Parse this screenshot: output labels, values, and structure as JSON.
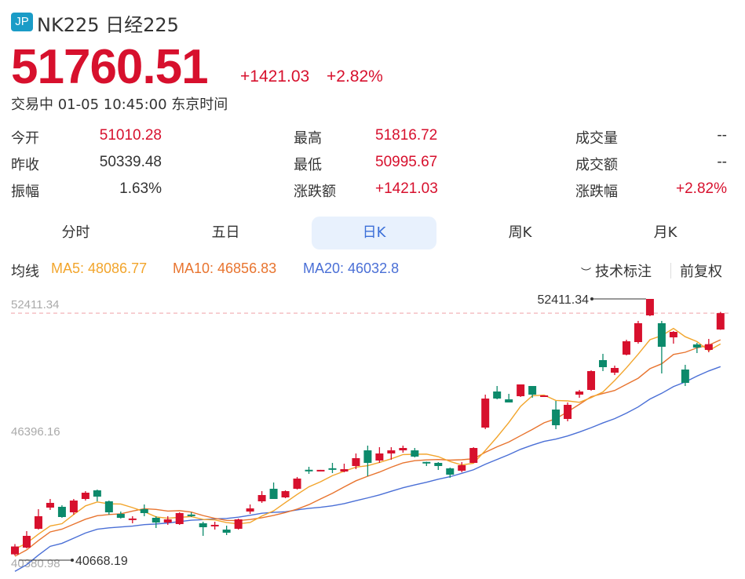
{
  "header": {
    "badge": "JP",
    "title": "NK225 日经225",
    "price": "51760.51",
    "change": "+1421.03",
    "change_pct": "+2.82%",
    "status_time": "交易中 01-05 10:45:00 东京时间"
  },
  "stats": [
    {
      "label": "今开",
      "value": "51010.28",
      "color": "red"
    },
    {
      "label": "昨收",
      "value": "50339.48",
      "color": "dark"
    },
    {
      "label": "振幅",
      "value": "1.63%",
      "color": "dark"
    },
    {
      "label": "最高",
      "value": "51816.72",
      "color": "red"
    },
    {
      "label": "最低",
      "value": "50995.67",
      "color": "red"
    },
    {
      "label": "涨跌额",
      "value": "+1421.03",
      "color": "red"
    },
    {
      "label": "成交量",
      "value": "--",
      "color": "dark"
    },
    {
      "label": "成交额",
      "value": "--",
      "color": "dark"
    },
    {
      "label": "涨跌幅",
      "value": "+2.82%",
      "color": "red"
    }
  ],
  "tabs": [
    {
      "label": "分时"
    },
    {
      "label": "五日"
    },
    {
      "label": "日K",
      "active": true
    },
    {
      "label": "周K"
    },
    {
      "label": "月K"
    }
  ],
  "ma_legend": {
    "label": "均线",
    "ma5": "MA5: 48086.77",
    "ma10": "MA10: 46856.83",
    "ma20": "MA20: 46032.8",
    "tech": "技术标注",
    "adjust": "前复权",
    "tech_icon": "eye-closed-icon"
  },
  "colors": {
    "up": "#d7102d",
    "down": "#0c8a6b",
    "ma5": "#f2a52c",
    "ma10": "#e8742f",
    "ma20": "#4a6fd6",
    "active_tab": "#3b6fd8"
  },
  "chart_data": {
    "type": "candlestick",
    "ylim": [
      40380.98,
      52411.34
    ],
    "y_ticks": [
      "52411.34",
      "46396.16",
      "40380.98"
    ],
    "current_price_line": 51760.51,
    "max_label": "52411.34",
    "min_label": "40668.19",
    "ohlc": [
      [
        40720,
        41080,
        41190,
        40668.19
      ],
      [
        41028,
        41566,
        41782,
        40992
      ],
      [
        41889,
        42464,
        42787,
        41853
      ],
      [
        42859,
        43075,
        43254,
        42751
      ],
      [
        42895,
        42428,
        42967,
        42392
      ],
      [
        42643,
        43182,
        43254,
        42536
      ],
      [
        43254,
        43541,
        43613,
        43182
      ],
      [
        43649,
        43362,
        43685,
        43146
      ],
      [
        43146,
        42643,
        43182,
        42536
      ],
      [
        42572,
        42392,
        42679,
        42356
      ],
      [
        42320,
        42360,
        42464,
        42141
      ],
      [
        42787,
        42608,
        43003,
        42464
      ],
      [
        42392,
        42177,
        42464,
        41925
      ],
      [
        42177,
        42320,
        42464,
        42069
      ],
      [
        42105,
        42608,
        42643,
        42069
      ],
      [
        42540,
        42520,
        42643,
        42428
      ],
      [
        42141,
        41961,
        42213,
        41566
      ],
      [
        42050,
        42070,
        42213,
        41853
      ],
      [
        41853,
        41710,
        42033,
        41602
      ],
      [
        41889,
        42320,
        42356,
        41853
      ],
      [
        42679,
        42823,
        43003,
        42572
      ],
      [
        43146,
        43434,
        43613,
        43074
      ],
      [
        43721,
        43254,
        44008,
        43254
      ],
      [
        43326,
        43613,
        43649,
        43290
      ],
      [
        43721,
        44188,
        44260,
        43685
      ],
      [
        44590,
        44575,
        44726,
        44403
      ],
      [
        44580,
        44586,
        44586,
        44580
      ],
      [
        44660,
        44650,
        44906,
        44439
      ],
      [
        44511,
        44619,
        44870,
        44475
      ],
      [
        44762,
        45122,
        45337,
        44619
      ],
      [
        45480,
        44906,
        45696,
        44295
      ],
      [
        45014,
        45337,
        45624,
        44906
      ],
      [
        45337,
        45480,
        45624,
        45050
      ],
      [
        45480,
        45588,
        45696,
        45373
      ],
      [
        45480,
        45193,
        45588,
        45158
      ],
      [
        44950,
        44940,
        44960,
        44762
      ],
      [
        44906,
        44762,
        44942,
        44583
      ],
      [
        44655,
        44367,
        44690,
        44223
      ],
      [
        44547,
        44798,
        44942,
        44475
      ],
      [
        44906,
        45588,
        45624,
        44906
      ],
      [
        46522,
        47851,
        48030,
        46450
      ],
      [
        48174,
        47851,
        48425,
        47815
      ],
      [
        47815,
        47671,
        48066,
        47671
      ],
      [
        47958,
        48497,
        48497,
        47922
      ],
      [
        48425,
        48030,
        48425,
        47887
      ],
      [
        47990,
        47994,
        47994,
        47990
      ],
      [
        47348,
        46629,
        47743,
        46450
      ],
      [
        46917,
        47563,
        47671,
        46809
      ],
      [
        48030,
        48174,
        48246,
        47887
      ],
      [
        48246,
        49107,
        49143,
        48210
      ],
      [
        49610,
        49287,
        49897,
        49107
      ],
      [
        49036,
        49251,
        49359,
        48928
      ],
      [
        49861,
        50472,
        50544,
        49826
      ],
      [
        50436,
        51298,
        51406,
        50364
      ],
      [
        51657,
        52411.34,
        52411.34,
        51621
      ],
      [
        51298,
        50221,
        51406,
        49000
      ],
      [
        50652,
        50903,
        50939,
        50364
      ],
      [
        49179,
        48569,
        49395,
        48425
      ],
      [
        50328,
        50185,
        50400,
        49933
      ],
      [
        50077,
        50339.48,
        50580,
        49969
      ],
      [
        51010.28,
        51760.51,
        51816.72,
        50995.67
      ]
    ]
  }
}
